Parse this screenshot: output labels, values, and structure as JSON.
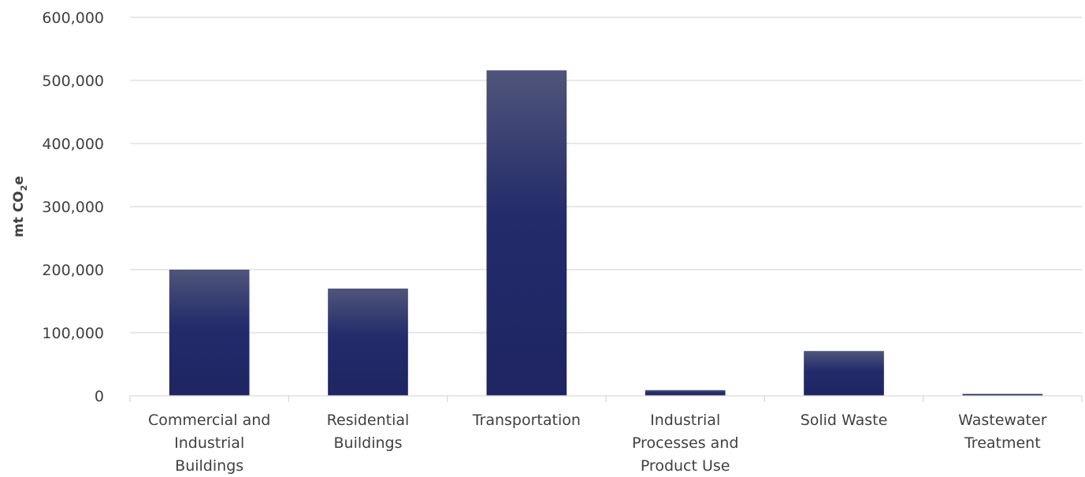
{
  "chart_data": {
    "type": "bar",
    "title": "",
    "xlabel": "",
    "ylabel_main": "mt CO",
    "ylabel_sub": "2",
    "ylabel_tail": "e",
    "categories": [
      [
        "Commercial and",
        "Industrial",
        "Buildings"
      ],
      [
        "Residential",
        "Buildings"
      ],
      [
        "Transportation"
      ],
      [
        "Industrial",
        "Processes and",
        "Product Use"
      ],
      [
        "Solid Waste"
      ],
      [
        "Wastewater",
        "Treatment"
      ]
    ],
    "values": [
      200000,
      170000,
      516000,
      9000,
      71000,
      3000
    ],
    "ylim": [
      0,
      600000
    ],
    "yticks": [
      0,
      100000,
      200000,
      300000,
      400000,
      500000,
      600000
    ],
    "ytick_labels": [
      "0",
      "100,000",
      "200,000",
      "300,000",
      "400,000",
      "500,000",
      "600,000"
    ],
    "grid": true,
    "legend": "none",
    "colors": {
      "bar_top": "#4f5579",
      "bar_mid": "#232b6b",
      "bar_bottom": "#1f2562",
      "grid": "#d9d9d9",
      "text": "#404040"
    }
  }
}
